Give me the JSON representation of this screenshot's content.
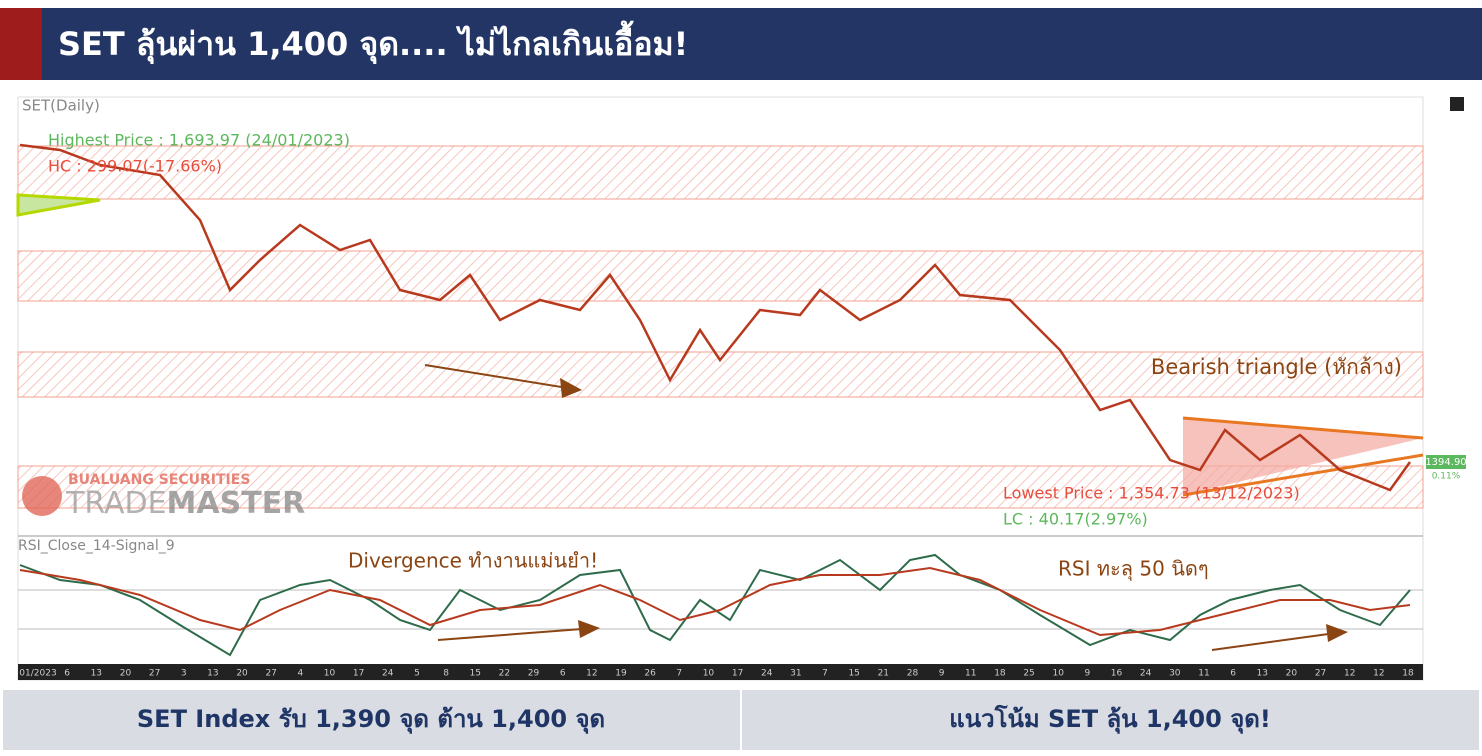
{
  "header": {
    "title": "SET ลุ้นผ่าน 1,400 จุด.... ไม่ไกลเกินเอื้อม!"
  },
  "chart": {
    "panel_label": "SET(Daily)",
    "highest": "Highest Price : 1,693.97 (24/01/2023)",
    "hc": "HC : 299.07(-17.66%)",
    "pattern": "Bearish triangle (หักล้าง)",
    "lowest": "Lowest Price : 1,354.73 (13/12/2023)",
    "lc": "LC : 40.17(2.97%)",
    "price_tag": "1394.90",
    "change_tag": "0.11%",
    "logo": {
      "company": "BUALUANG SECURITIES",
      "brand_a": "TRADE",
      "brand_b": "MASTER"
    },
    "rsi_label": "RSI_Close_14-Signal_9",
    "divergence_note": "Divergence ทำงานแม่นยำ!",
    "rsi_note": "RSI ทะลุ 50 นิดๆ",
    "x_labels": [
      "01/2023",
      "6",
      "13",
      "20",
      "27",
      "3",
      "13",
      "20",
      "27",
      "4",
      "10",
      "17",
      "24",
      "5",
      "8",
      "15",
      "22",
      "29",
      "6",
      "12",
      "19",
      "26",
      "7",
      "10",
      "17",
      "24",
      "31",
      "7",
      "15",
      "21",
      "28",
      "9",
      "11",
      "18",
      "25",
      "10",
      "9",
      "16",
      "24",
      "30",
      "11",
      "6",
      "13",
      "20",
      "27",
      "12",
      "12",
      "18"
    ]
  },
  "footer": {
    "left": "SET Index รับ 1,390 จุด ต้าน 1,400 จุด",
    "right": "แนวโน้ม SET ลุ้น 1,400 จุด!"
  }
}
